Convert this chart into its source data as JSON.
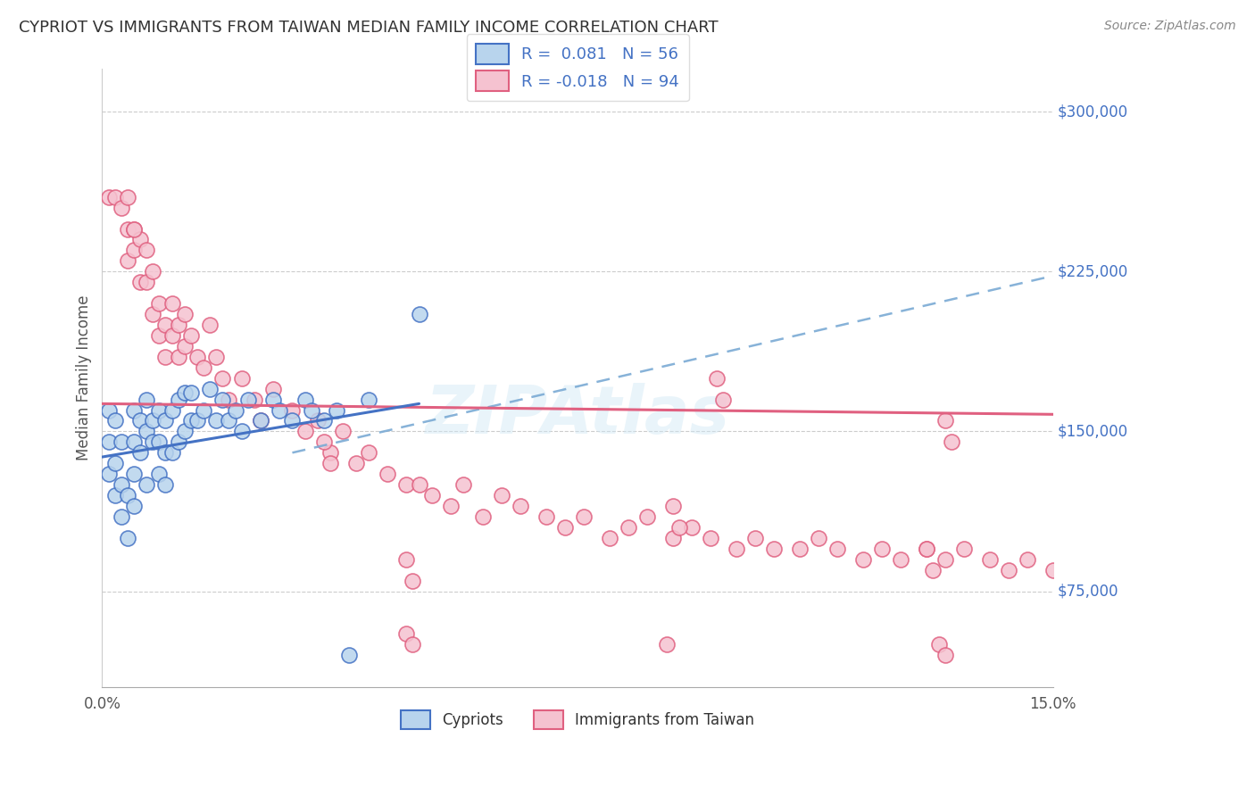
{
  "title": "CYPRIOT VS IMMIGRANTS FROM TAIWAN MEDIAN FAMILY INCOME CORRELATION CHART",
  "source": "Source: ZipAtlas.com",
  "ylabel": "Median Family Income",
  "yticks": [
    75000,
    150000,
    225000,
    300000
  ],
  "ytick_labels": [
    "$75,000",
    "$150,000",
    "$225,000",
    "$300,000"
  ],
  "xmin": 0.0,
  "xmax": 0.15,
  "ymin": 30000,
  "ymax": 320000,
  "legend_r1": "0.081",
  "legend_n1": "56",
  "legend_r2": "-0.018",
  "legend_n2": "94",
  "cypriot_fill": "#b8d4ed",
  "cypriot_edge": "#4472c4",
  "taiwan_fill": "#f5c2d0",
  "taiwan_edge": "#e06080",
  "blue_line_color": "#4472c4",
  "pink_line_color": "#e06080",
  "dashed_line_color": "#7aaad4",
  "cypriot_scatter_x": [
    0.001,
    0.001,
    0.001,
    0.002,
    0.002,
    0.002,
    0.003,
    0.003,
    0.003,
    0.004,
    0.004,
    0.005,
    0.005,
    0.005,
    0.005,
    0.006,
    0.006,
    0.007,
    0.007,
    0.007,
    0.008,
    0.008,
    0.009,
    0.009,
    0.009,
    0.01,
    0.01,
    0.01,
    0.011,
    0.011,
    0.012,
    0.012,
    0.013,
    0.013,
    0.014,
    0.014,
    0.015,
    0.016,
    0.017,
    0.018,
    0.019,
    0.02,
    0.021,
    0.022,
    0.023,
    0.025,
    0.027,
    0.028,
    0.03,
    0.032,
    0.033,
    0.035,
    0.037,
    0.039,
    0.042,
    0.05
  ],
  "cypriot_scatter_y": [
    160000,
    145000,
    130000,
    120000,
    135000,
    155000,
    110000,
    125000,
    145000,
    100000,
    120000,
    115000,
    130000,
    145000,
    160000,
    140000,
    155000,
    125000,
    150000,
    165000,
    145000,
    155000,
    130000,
    145000,
    160000,
    125000,
    140000,
    155000,
    140000,
    160000,
    145000,
    165000,
    150000,
    168000,
    155000,
    168000,
    155000,
    160000,
    170000,
    155000,
    165000,
    155000,
    160000,
    150000,
    165000,
    155000,
    165000,
    160000,
    155000,
    165000,
    160000,
    155000,
    160000,
    45000,
    165000,
    205000
  ],
  "taiwan_scatter_x": [
    0.001,
    0.002,
    0.003,
    0.004,
    0.004,
    0.005,
    0.005,
    0.006,
    0.006,
    0.007,
    0.007,
    0.008,
    0.008,
    0.009,
    0.009,
    0.01,
    0.01,
    0.011,
    0.011,
    0.012,
    0.012,
    0.013,
    0.013,
    0.014,
    0.015,
    0.016,
    0.017,
    0.018,
    0.019,
    0.02,
    0.022,
    0.024,
    0.025,
    0.027,
    0.03,
    0.032,
    0.034,
    0.036,
    0.038,
    0.04,
    0.042,
    0.045,
    0.048,
    0.05,
    0.052,
    0.055,
    0.057,
    0.06,
    0.063,
    0.066,
    0.07,
    0.073,
    0.076,
    0.08,
    0.083,
    0.086,
    0.09,
    0.093,
    0.096,
    0.1,
    0.103,
    0.106,
    0.11,
    0.113,
    0.116,
    0.12,
    0.123,
    0.126,
    0.13,
    0.133,
    0.136,
    0.14,
    0.143,
    0.146,
    0.15,
    0.004,
    0.005,
    0.035,
    0.036,
    0.048,
    0.049,
    0.09,
    0.091,
    0.13,
    0.131,
    0.048,
    0.049,
    0.089,
    0.132,
    0.133,
    0.097,
    0.098,
    0.133,
    0.134
  ],
  "taiwan_scatter_y": [
    260000,
    260000,
    255000,
    245000,
    230000,
    245000,
    235000,
    220000,
    240000,
    235000,
    220000,
    225000,
    205000,
    195000,
    210000,
    200000,
    185000,
    195000,
    210000,
    185000,
    200000,
    190000,
    205000,
    195000,
    185000,
    180000,
    200000,
    185000,
    175000,
    165000,
    175000,
    165000,
    155000,
    170000,
    160000,
    150000,
    155000,
    140000,
    150000,
    135000,
    140000,
    130000,
    125000,
    125000,
    120000,
    115000,
    125000,
    110000,
    120000,
    115000,
    110000,
    105000,
    110000,
    100000,
    105000,
    110000,
    100000,
    105000,
    100000,
    95000,
    100000,
    95000,
    95000,
    100000,
    95000,
    90000,
    95000,
    90000,
    95000,
    90000,
    95000,
    90000,
    85000,
    90000,
    85000,
    260000,
    245000,
    145000,
    135000,
    90000,
    80000,
    115000,
    105000,
    95000,
    85000,
    55000,
    50000,
    50000,
    50000,
    45000,
    175000,
    165000,
    155000,
    145000
  ]
}
